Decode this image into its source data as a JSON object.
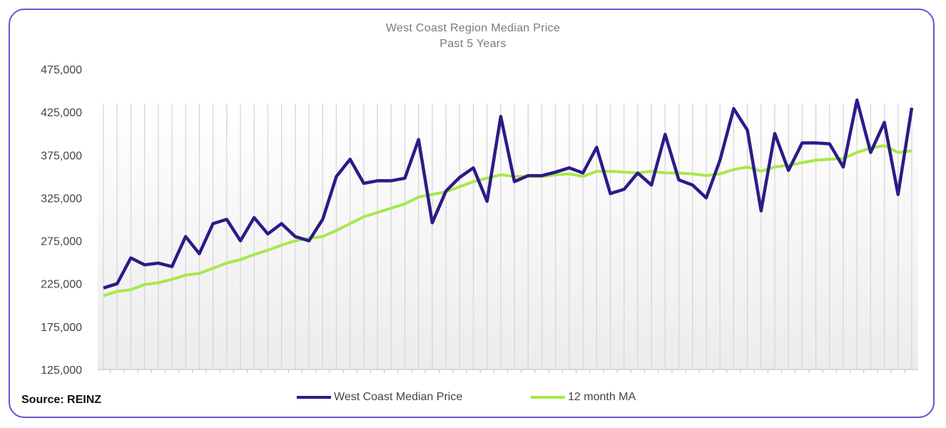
{
  "chart_data": {
    "type": "line",
    "title": "West Coast Region Median Price",
    "subtitle": "Past 5 Years",
    "xlabel": "",
    "ylabel": "",
    "ylim": [
      125000,
      475000
    ],
    "yticks": [
      "125,000",
      "175,000",
      "225,000",
      "275,000",
      "325,000",
      "375,000",
      "425,000",
      "475,000"
    ],
    "ytick_values": [
      125000,
      175000,
      225000,
      275000,
      325000,
      375000,
      425000,
      475000
    ],
    "grid": "vertical",
    "legend": "bottom",
    "series": [
      {
        "name": "West Coast Median Price",
        "color": "#2e1a87",
        "values": [
          220000,
          225000,
          255000,
          247000,
          249000,
          245000,
          280000,
          260000,
          295000,
          300000,
          275000,
          302000,
          283000,
          295000,
          280000,
          275000,
          300000,
          350000,
          370000,
          342000,
          345000,
          345000,
          348000,
          393000,
          296000,
          333000,
          349000,
          360000,
          321000,
          420000,
          344000,
          351000,
          351000,
          355000,
          360000,
          354000,
          384000,
          330000,
          335000,
          354000,
          340000,
          399000,
          346000,
          340000,
          325000,
          369000,
          429000,
          404000,
          310000,
          400000,
          357000,
          389000,
          389000,
          388000,
          361000,
          439000,
          378000,
          413000,
          329000,
          430000
        ]
      },
      {
        "name": "12 month MA",
        "color": "#a8e84c",
        "values": [
          211000,
          216000,
          218000,
          224000,
          226000,
          230000,
          235000,
          237000,
          243000,
          249000,
          253000,
          259000,
          264000,
          270000,
          275000,
          278000,
          280000,
          287000,
          295000,
          303000,
          308000,
          313000,
          318000,
          326000,
          329000,
          332000,
          338000,
          344000,
          348000,
          352000,
          350000,
          350000,
          350000,
          352000,
          353000,
          350000,
          356000,
          356000,
          355000,
          354000,
          356000,
          354000,
          354000,
          353000,
          351000,
          353000,
          358000,
          361000,
          356000,
          361000,
          363000,
          366000,
          369000,
          370000,
          371000,
          378000,
          383000,
          386000,
          378000,
          380000
        ]
      }
    ]
  },
  "source": "Source: REINZ"
}
